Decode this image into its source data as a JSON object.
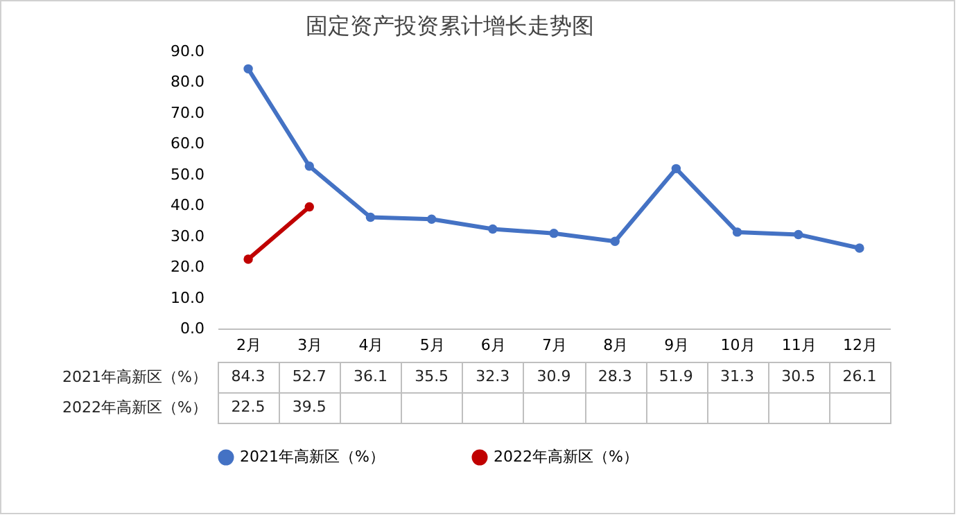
{
  "chart_data": {
    "type": "line",
    "title": "固定资产投资累计增长走势图",
    "categories": [
      "2月",
      "3月",
      "4月",
      "5月",
      "6月",
      "7月",
      "8月",
      "9月",
      "10月",
      "11月",
      "12月"
    ],
    "series": [
      {
        "name": "2021年高新区（%）",
        "color": "#4472c4",
        "values": [
          84.3,
          52.7,
          36.1,
          35.5,
          32.3,
          30.9,
          28.3,
          51.9,
          31.3,
          30.5,
          26.1
        ]
      },
      {
        "name": "2022年高新区（%）",
        "color": "#c00000",
        "values": [
          22.5,
          39.5,
          null,
          null,
          null,
          null,
          null,
          null,
          null,
          null,
          null
        ]
      }
    ],
    "ylim": [
      0,
      90
    ],
    "yticks": [
      {
        "value": 0,
        "label": "0.0"
      },
      {
        "value": 10,
        "label": "10.0"
      },
      {
        "value": 20,
        "label": "20.0"
      },
      {
        "value": 30,
        "label": "30.0"
      },
      {
        "value": 40,
        "label": "40.0"
      },
      {
        "value": 50,
        "label": "50.0"
      },
      {
        "value": 60,
        "label": "60.0"
      },
      {
        "value": 70,
        "label": "70.0"
      },
      {
        "value": 80,
        "label": "80.0"
      },
      {
        "value": 90,
        "label": "90.0"
      }
    ],
    "data_labels": true,
    "legend": "bottom",
    "marker": "circle",
    "line_style": "solid"
  }
}
